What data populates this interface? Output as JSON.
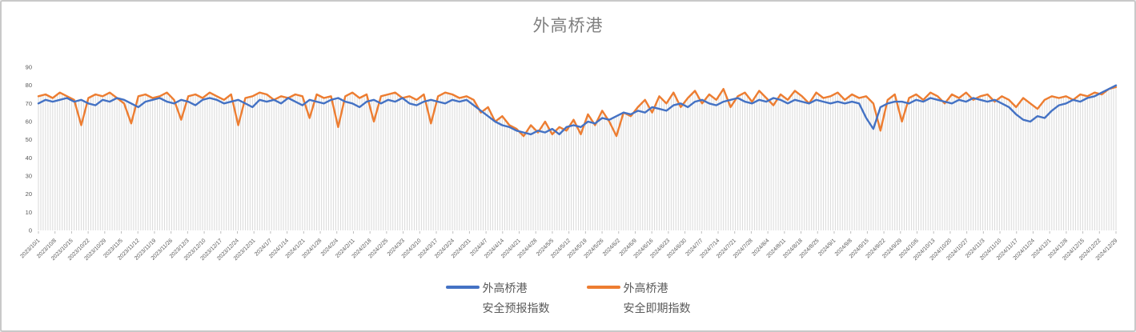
{
  "title": "外高桥港",
  "legend": {
    "items": [
      {
        "line1": "外高桥港",
        "line2": "安全预报指数",
        "color": "#4472C4"
      },
      {
        "line1": "外高桥港",
        "line2": "安全即期指数",
        "color": "#ED7D31"
      }
    ]
  },
  "chart_data": {
    "type": "line",
    "title": "外高桥港",
    "ylim": [
      0,
      90
    ],
    "y_ticks": [
      0,
      10,
      20,
      30,
      40,
      50,
      60,
      70,
      80,
      90
    ],
    "grid": "none",
    "drop_lines": true,
    "legend_position": "bottom",
    "sample_interval_days": 3,
    "colors": {
      "forecast_line": "#4472C4",
      "spot_line": "#ED7D31",
      "drop_line": "#DDDDDD",
      "tick_mark": "#BFBFBF",
      "axis_text": "#595959",
      "title_text": "#7F7F7F"
    },
    "x_tick_labels": [
      "2023/10/1",
      "2023/10/8",
      "2023/10/15",
      "2023/10/22",
      "2023/10/29",
      "2023/11/5",
      "2023/11/12",
      "2023/11/19",
      "2023/11/26",
      "2023/12/3",
      "2023/12/10",
      "2023/12/17",
      "2023/12/24",
      "2023/12/31",
      "2024/1/7",
      "2024/1/14",
      "2024/1/21",
      "2024/1/28",
      "2024/2/4",
      "2024/2/11",
      "2024/2/18",
      "2024/2/25",
      "2024/3/3",
      "2024/3/10",
      "2024/3/17",
      "2024/3/24",
      "2024/3/31",
      "2024/4/7",
      "2024/4/14",
      "2024/4/21",
      "2024/4/28",
      "2024/5/5",
      "2024/5/12",
      "2024/5/19",
      "2024/5/26",
      "2024/6/2",
      "2024/6/9",
      "2024/6/16",
      "2024/6/23",
      "2024/6/30",
      "2024/7/7",
      "2024/7/14",
      "2024/7/21",
      "2024/7/28",
      "2024/8/4",
      "2024/8/11",
      "2024/8/18",
      "2024/8/25",
      "2024/9/1",
      "2024/9/8",
      "2024/9/15",
      "2024/9/22",
      "2024/9/29",
      "2024/10/6",
      "2024/10/13",
      "2024/10/20",
      "2024/10/27",
      "2024/11/3",
      "2024/11/10",
      "2024/11/17",
      "2024/11/24",
      "2024/12/1",
      "2024/12/8",
      "2024/12/15",
      "2024/12/22",
      "2024/12/29"
    ],
    "series": [
      {
        "name": "外高桥港安全预报指数",
        "color": "#4472C4",
        "values": [
          70,
          72,
          71,
          72,
          73,
          71,
          72,
          70,
          69,
          72,
          71,
          73,
          72,
          70,
          68,
          71,
          72,
          73,
          71,
          70,
          72,
          71,
          69,
          72,
          73,
          72,
          70,
          71,
          72,
          70,
          68,
          72,
          71,
          72,
          70,
          73,
          71,
          69,
          72,
          71,
          70,
          72,
          73,
          71,
          70,
          68,
          71,
          72,
          70,
          72,
          71,
          73,
          70,
          69,
          71,
          72,
          71,
          70,
          72,
          71,
          72,
          69,
          66,
          63,
          60,
          58,
          57,
          55,
          54,
          53,
          55,
          54,
          56,
          53,
          57,
          58,
          57,
          60,
          59,
          62,
          61,
          63,
          65,
          64,
          66,
          65,
          68,
          67,
          66,
          69,
          70,
          68,
          71,
          72,
          70,
          69,
          71,
          72,
          73,
          71,
          70,
          72,
          71,
          73,
          72,
          70,
          72,
          71,
          70,
          72,
          71,
          70,
          71,
          70,
          71,
          70,
          62,
          56,
          68,
          70,
          71,
          71,
          70,
          72,
          71,
          73,
          72,
          71,
          70,
          72,
          71,
          73,
          72,
          71,
          72,
          70,
          68,
          64,
          61,
          60,
          63,
          62,
          66,
          69,
          70,
          72,
          71,
          73,
          74,
          76,
          78,
          80
        ]
      },
      {
        "name": "外高桥港安全即期指数",
        "color": "#ED7D31",
        "values": [
          74,
          75,
          73,
          76,
          74,
          72,
          58,
          73,
          75,
          74,
          76,
          73,
          70,
          59,
          74,
          75,
          73,
          74,
          76,
          72,
          61,
          74,
          75,
          73,
          76,
          74,
          72,
          75,
          58,
          73,
          74,
          76,
          75,
          72,
          74,
          73,
          75,
          74,
          62,
          75,
          73,
          74,
          57,
          74,
          76,
          73,
          75,
          60,
          74,
          75,
          76,
          73,
          74,
          72,
          75,
          59,
          74,
          76,
          75,
          73,
          74,
          72,
          65,
          68,
          60,
          63,
          58,
          56,
          52,
          58,
          54,
          60,
          53,
          57,
          55,
          61,
          53,
          64,
          58,
          66,
          60,
          52,
          65,
          63,
          68,
          72,
          65,
          74,
          70,
          76,
          68,
          73,
          77,
          70,
          75,
          72,
          78,
          68,
          74,
          76,
          71,
          77,
          73,
          69,
          75,
          72,
          77,
          74,
          70,
          76,
          73,
          74,
          76,
          72,
          75,
          73,
          74,
          70,
          55,
          72,
          75,
          60,
          73,
          75,
          72,
          76,
          74,
          70,
          75,
          73,
          76,
          72,
          74,
          75,
          71,
          74,
          72,
          68,
          73,
          70,
          67,
          72,
          74,
          73,
          74,
          72,
          75,
          74,
          76,
          75,
          78,
          79
        ]
      }
    ]
  }
}
